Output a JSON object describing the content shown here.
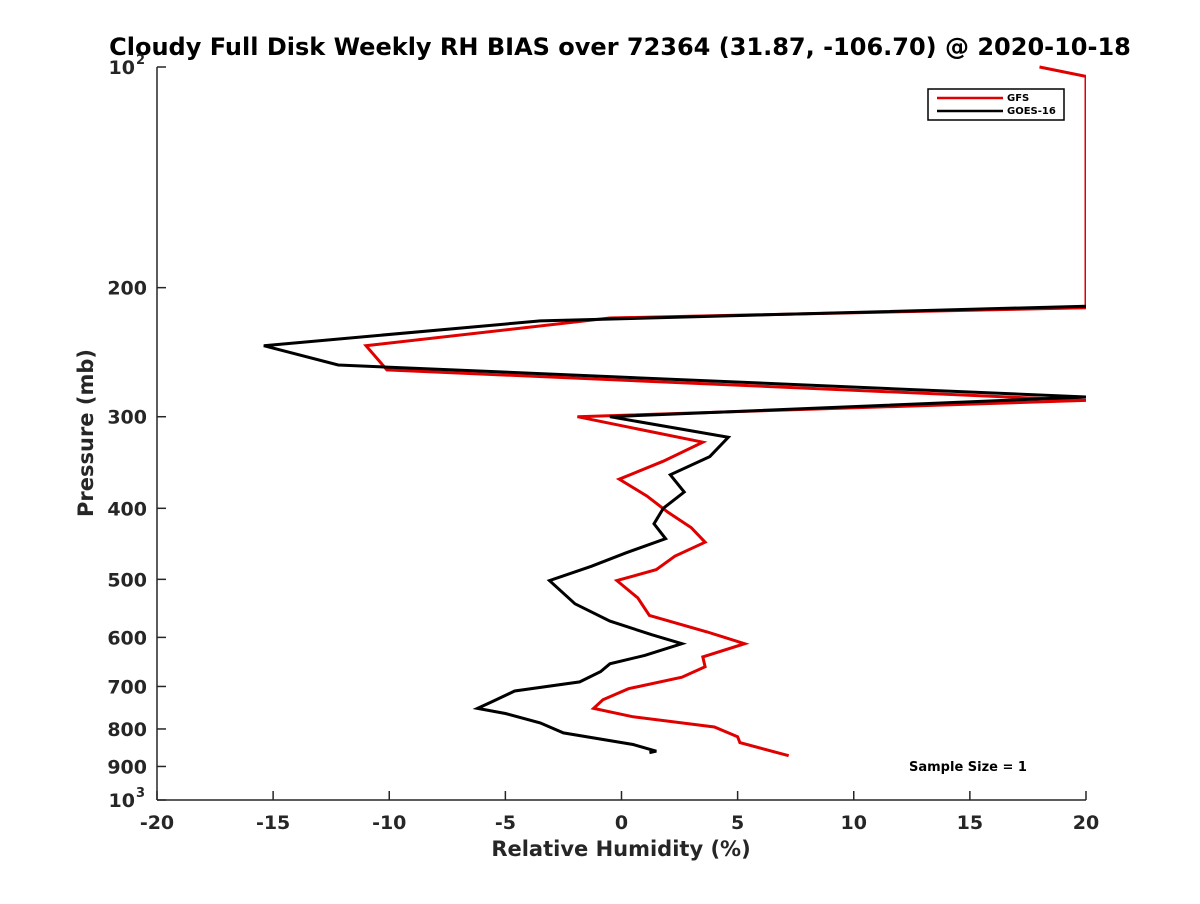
{
  "chart_data": {
    "type": "line",
    "title": "Cloudy Full Disk Weekly RH BIAS over 72364 (31.87, -106.70) @ 2020-10-18",
    "xlabel": "Relative Humidity (%)",
    "ylabel": "Pressure (mb)",
    "xlim": [
      -20,
      20
    ],
    "ylim": [
      100,
      1000
    ],
    "y_scale": "log",
    "y_reversed": true,
    "x_ticks": [
      "-20",
      "-15",
      "-10",
      "-5",
      "0",
      "5",
      "10",
      "15",
      "20"
    ],
    "y_ticks": [
      {
        "base": "10",
        "exp": "2"
      },
      {
        "base": "200",
        "exp": ""
      },
      {
        "base": "300",
        "exp": ""
      },
      {
        "base": "400",
        "exp": ""
      },
      {
        "base": "500",
        "exp": ""
      },
      {
        "base": "600",
        "exp": ""
      },
      {
        "base": "700",
        "exp": ""
      },
      {
        "base": "800",
        "exp": ""
      },
      {
        "base": "900",
        "exp": ""
      },
      {
        "base": "10",
        "exp": "3"
      }
    ],
    "legend_position": "top-right",
    "grid": false,
    "annotation": "Sample Size = 1",
    "series": [
      {
        "name": "GFS",
        "color": "#e00000",
        "points": [
          [
            18.0,
            100
          ],
          [
            20.0,
            103
          ],
          [
            20.0,
            213
          ],
          [
            -0.5,
            220
          ],
          [
            -11.0,
            240
          ],
          [
            -10.1,
            259
          ],
          [
            20.0,
            285
          ],
          [
            -1.9,
            300
          ],
          [
            3.5,
            325
          ],
          [
            1.8,
            345
          ],
          [
            -0.1,
            365
          ],
          [
            1.1,
            385
          ],
          [
            2.0,
            405
          ],
          [
            3.0,
            425
          ],
          [
            3.6,
            445
          ],
          [
            2.3,
            465
          ],
          [
            1.5,
            485
          ],
          [
            -0.2,
            502
          ],
          [
            0.7,
            530
          ],
          [
            1.2,
            560
          ],
          [
            3.7,
            590
          ],
          [
            5.3,
            612
          ],
          [
            3.5,
            638
          ],
          [
            3.6,
            658
          ],
          [
            2.6,
            680
          ],
          [
            0.3,
            705
          ],
          [
            -0.8,
            730
          ],
          [
            -1.2,
            750
          ],
          [
            0.5,
            770
          ],
          [
            4.0,
            795
          ],
          [
            5.0,
            820
          ],
          [
            5.1,
            835
          ],
          [
            7.2,
            870
          ]
        ]
      },
      {
        "name": "GOES-16",
        "color": "#000000",
        "points": [
          [
            20.0,
            212
          ],
          [
            -3.5,
            222
          ],
          [
            -15.4,
            240
          ],
          [
            -12.2,
            255
          ],
          [
            20.0,
            282
          ],
          [
            -0.5,
            300
          ],
          [
            4.6,
            320
          ],
          [
            3.8,
            340
          ],
          [
            2.1,
            360
          ],
          [
            2.7,
            380
          ],
          [
            1.8,
            400
          ],
          [
            1.4,
            420
          ],
          [
            1.9,
            440
          ],
          [
            0.2,
            460
          ],
          [
            -1.3,
            480
          ],
          [
            -3.1,
            502
          ],
          [
            -2.0,
            540
          ],
          [
            -0.5,
            570
          ],
          [
            1.3,
            595
          ],
          [
            2.6,
            612
          ],
          [
            1.0,
            635
          ],
          [
            -0.5,
            652
          ],
          [
            -0.9,
            668
          ],
          [
            -1.8,
            690
          ],
          [
            -4.6,
            710
          ],
          [
            -5.6,
            735
          ],
          [
            -6.2,
            750
          ],
          [
            -5.0,
            762
          ],
          [
            -3.5,
            785
          ],
          [
            -2.5,
            810
          ],
          [
            0.5,
            840
          ],
          [
            1.5,
            858
          ],
          [
            1.2,
            862
          ]
        ]
      }
    ]
  }
}
